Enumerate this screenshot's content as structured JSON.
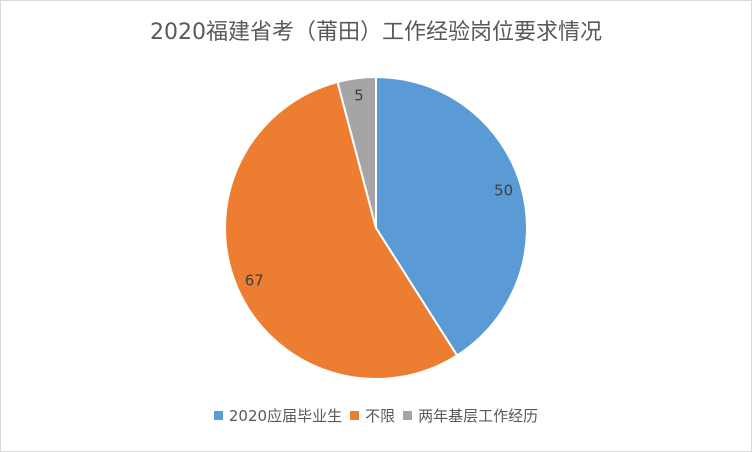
{
  "chart_data": {
    "type": "pie",
    "title": "2020福建省考（莆田）工作经验岗位要求情况",
    "categories": [
      "2020应届毕业生",
      "不限",
      "两年基层工作经历"
    ],
    "values": [
      50,
      67,
      5
    ],
    "colors": [
      "#5b9bd5",
      "#ed7d31",
      "#a5a5a5"
    ],
    "data_labels": [
      "50",
      "67",
      "5"
    ],
    "legend": "bottom",
    "start_angle": "12 o'clock",
    "direction": "clockwise"
  }
}
